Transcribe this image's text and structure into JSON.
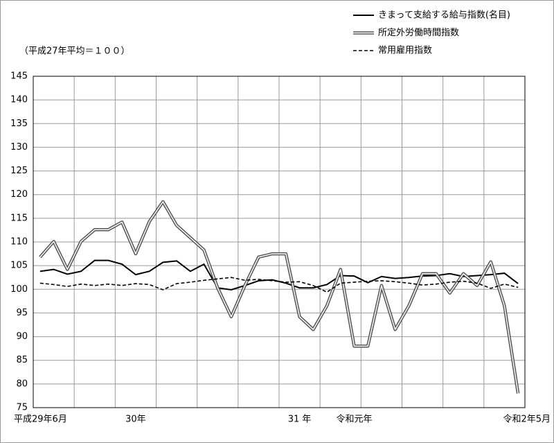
{
  "chart_data": {
    "type": "line",
    "unit_label": "（平成27年平均＝１００）",
    "categories": [
      "平成29年6月",
      null,
      null,
      null,
      null,
      null,
      null,
      "30年",
      null,
      null,
      null,
      null,
      null,
      null,
      null,
      null,
      null,
      null,
      null,
      "31 年",
      null,
      null,
      null,
      "令和元年",
      null,
      null,
      null,
      null,
      null,
      null,
      null,
      null,
      null,
      null,
      null,
      "令和2年5月"
    ],
    "series": [
      {
        "name": "きまって支給する給与指数(名目)",
        "color": "#000000",
        "style": "solid",
        "values": [
          103.8,
          104.2,
          103.2,
          103.8,
          106.1,
          106.1,
          105.3,
          103.1,
          103.8,
          105.7,
          106.0,
          103.8,
          105.3,
          100.3,
          99.9,
          100.8,
          101.8,
          102.0,
          101.3,
          100.3,
          100.3,
          101.0,
          102.9,
          102.8,
          101.4,
          102.7,
          102.3,
          102.5,
          102.8,
          102.9,
          103.3,
          102.7,
          102.9,
          103.1,
          103.4,
          101.2
        ]
      },
      {
        "name": "所定外労働時間指数",
        "color": "#555555",
        "style": "double",
        "values": [
          106.8,
          110.1,
          104.2,
          110.1,
          112.6,
          112.6,
          114.2,
          107.5,
          114.3,
          118.5,
          113.5,
          110.9,
          108.3,
          100.3,
          94.2,
          100.8,
          106.8,
          107.5,
          107.5,
          94.2,
          91.5,
          96.5,
          104.2,
          88.0,
          88.0,
          100.8,
          91.5,
          96.5,
          103.3,
          103.3,
          99.2,
          103.3,
          100.8,
          105.8,
          96.5,
          78.0
        ]
      },
      {
        "name": "常用雇用指数",
        "color": "#000000",
        "style": "dashed",
        "values": [
          101.3,
          101.0,
          100.6,
          101.1,
          100.8,
          101.1,
          100.8,
          101.2,
          101.0,
          99.9,
          101.2,
          101.5,
          101.9,
          102.2,
          102.5,
          101.9,
          102.1,
          101.8,
          101.5,
          101.6,
          100.8,
          99.4,
          101.3,
          101.5,
          101.7,
          101.8,
          101.6,
          101.3,
          100.9,
          101.1,
          101.5,
          101.7,
          101.3,
          100.2,
          101.1,
          100.4
        ]
      }
    ],
    "ylim": [
      75,
      145
    ],
    "yticks": [
      75,
      80,
      85,
      90,
      95,
      100,
      105,
      110,
      115,
      120,
      125,
      130,
      135,
      140,
      145
    ],
    "grid": true,
    "legend": "top-right"
  }
}
